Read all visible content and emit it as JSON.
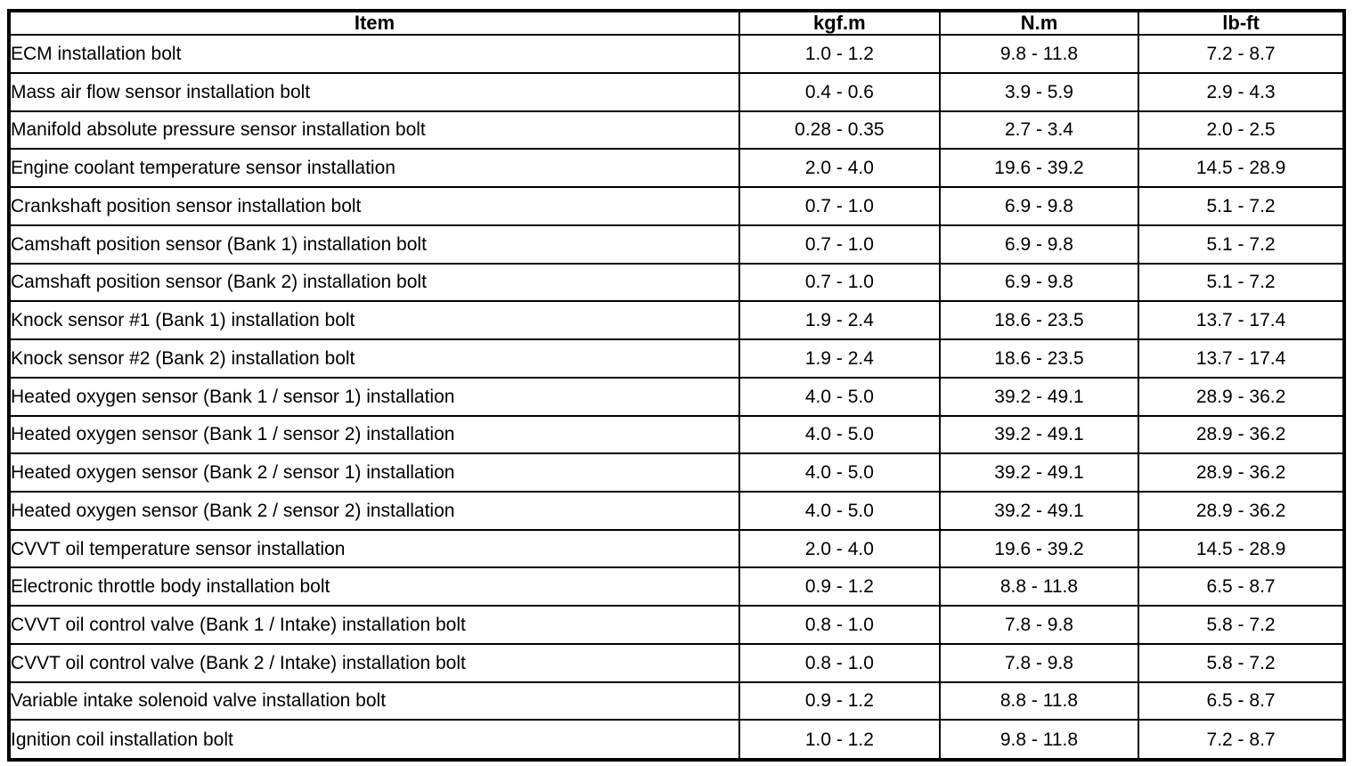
{
  "colors": {
    "border": "#000000",
    "text": "#000000",
    "background": "#ffffff"
  },
  "table": {
    "columns": [
      {
        "key": "item",
        "label": "Item"
      },
      {
        "key": "kgf_m",
        "label": "kgf.m"
      },
      {
        "key": "n_m",
        "label": "N.m"
      },
      {
        "key": "lb_ft",
        "label": "lb-ft"
      }
    ],
    "rows": [
      {
        "item": "ECM installation bolt",
        "kgf_m": "1.0 - 1.2",
        "n_m": "9.8 - 11.8",
        "lb_ft": "7.2 - 8.7"
      },
      {
        "item": "Mass air flow sensor installation bolt",
        "kgf_m": "0.4 - 0.6",
        "n_m": "3.9 - 5.9",
        "lb_ft": "2.9 - 4.3"
      },
      {
        "item": "Manifold absolute pressure sensor installation bolt",
        "kgf_m": "0.28 - 0.35",
        "n_m": "2.7 - 3.4",
        "lb_ft": "2.0 - 2.5"
      },
      {
        "item": "Engine coolant temperature sensor installation",
        "kgf_m": "2.0 - 4.0",
        "n_m": "19.6 - 39.2",
        "lb_ft": "14.5 - 28.9"
      },
      {
        "item": "Crankshaft position sensor installation bolt",
        "kgf_m": "0.7 - 1.0",
        "n_m": "6.9 - 9.8",
        "lb_ft": "5.1 - 7.2"
      },
      {
        "item": "Camshaft position sensor (Bank 1) installation bolt",
        "kgf_m": "0.7 - 1.0",
        "n_m": "6.9 - 9.8",
        "lb_ft": "5.1 - 7.2"
      },
      {
        "item": "Camshaft position sensor (Bank 2) installation bolt",
        "kgf_m": "0.7 - 1.0",
        "n_m": "6.9 - 9.8",
        "lb_ft": "5.1 - 7.2"
      },
      {
        "item": "Knock sensor #1 (Bank 1) installation bolt",
        "kgf_m": "1.9 - 2.4",
        "n_m": "18.6 - 23.5",
        "lb_ft": "13.7 - 17.4"
      },
      {
        "item": "Knock sensor #2 (Bank 2) installation bolt",
        "kgf_m": "1.9 - 2.4",
        "n_m": "18.6 - 23.5",
        "lb_ft": "13.7 - 17.4"
      },
      {
        "item": "Heated oxygen sensor (Bank 1 / sensor 1) installation",
        "kgf_m": "4.0 - 5.0",
        "n_m": "39.2 - 49.1",
        "lb_ft": "28.9 - 36.2"
      },
      {
        "item": "Heated oxygen sensor (Bank 1 / sensor 2) installation",
        "kgf_m": "4.0 - 5.0",
        "n_m": "39.2 - 49.1",
        "lb_ft": "28.9 - 36.2"
      },
      {
        "item": "Heated oxygen sensor (Bank 2 / sensor 1) installation",
        "kgf_m": "4.0 - 5.0",
        "n_m": "39.2 - 49.1",
        "lb_ft": "28.9 - 36.2"
      },
      {
        "item": "Heated oxygen sensor (Bank 2 / sensor 2) installation",
        "kgf_m": "4.0 - 5.0",
        "n_m": "39.2 - 49.1",
        "lb_ft": "28.9 - 36.2"
      },
      {
        "item": "CVVT oil temperature sensor installation",
        "kgf_m": "2.0 - 4.0",
        "n_m": "19.6 - 39.2",
        "lb_ft": "14.5 - 28.9"
      },
      {
        "item": "Electronic throttle body installation bolt",
        "kgf_m": "0.9 - 1.2",
        "n_m": "8.8 - 11.8",
        "lb_ft": "6.5 - 8.7"
      },
      {
        "item": "CVVT oil control valve (Bank 1 / Intake) installation bolt",
        "kgf_m": "0.8 - 1.0",
        "n_m": "7.8 - 9.8",
        "lb_ft": "5.8 - 7.2"
      },
      {
        "item": "CVVT oil control valve (Bank 2 / Intake) installation bolt",
        "kgf_m": "0.8 - 1.0",
        "n_m": "7.8 - 9.8",
        "lb_ft": "5.8 - 7.2"
      },
      {
        "item": "Variable intake solenoid valve installation bolt",
        "kgf_m": "0.9 - 1.2",
        "n_m": "8.8 - 11.8",
        "lb_ft": "6.5 - 8.7"
      },
      {
        "item": "Ignition coil installation bolt",
        "kgf_m": "1.0 - 1.2",
        "n_m": "9.8 - 11.8",
        "lb_ft": "7.2 - 8.7"
      }
    ]
  }
}
